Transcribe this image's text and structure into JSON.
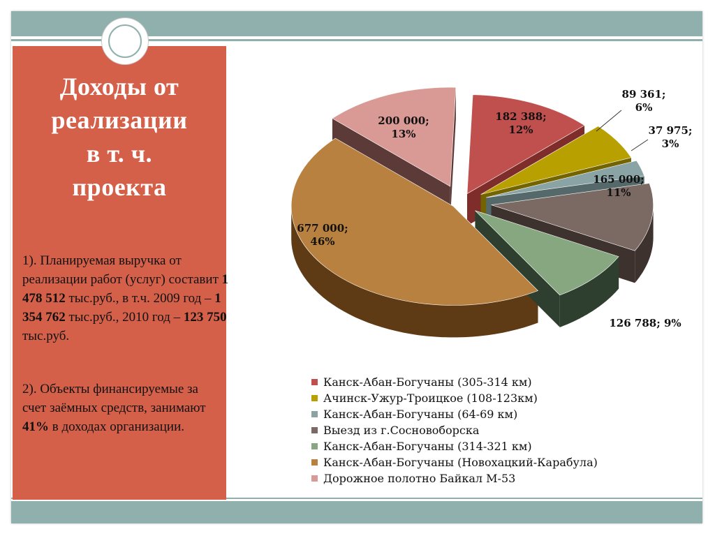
{
  "title_lines": [
    "Доходы от",
    "реализации",
    "в т. ч.",
    "проекта"
  ],
  "para1": {
    "a": "1). Планируемая выручка от реализации работ (услуг) составит ",
    "b": "1 478 512",
    "c": " тыс.руб., в т.ч. 2009 год – ",
    "d": "1 354 762",
    "e": " тыс.руб., 2010 год – ",
    "f": "123 750",
    "g": " тыс.руб."
  },
  "para2": {
    "a": "2). Объекты финансируемые за счет заёмных средств, занимают ",
    "b": "41%",
    "c": " в доходах организации."
  },
  "chart_data": {
    "type": "pie",
    "slices": [
      {
        "name": "Канск-Абан-Богучаны (305-314 км)",
        "value": 182388,
        "pct": "12%",
        "label": [
          "182 388;",
          "12%"
        ],
        "color": "#c0504d",
        "dark": "#7e2d2a"
      },
      {
        "name": "Ачинск-Ужур-Троицкое (108-123км)",
        "value": 89361,
        "pct": "6%",
        "label": [
          "89 361;",
          "6%"
        ],
        "color": "#b7a000",
        "dark": "#736400"
      },
      {
        "name": "Канск-Абан-Богучаны (64-69 км)",
        "value": 37975,
        "pct": "3%",
        "label": [
          "37 975;",
          "3%"
        ],
        "color": "#8aa3a4",
        "dark": "#55696a"
      },
      {
        "name": "Выезд из г.Сосновоборска",
        "value": 165000,
        "pct": "11%",
        "label": [
          "165 000;",
          "11%"
        ],
        "color": "#7b6a64",
        "dark": "#3e322e"
      },
      {
        "name": "Канск-Абан-Богучаны (314-321 км)",
        "value": 126788,
        "pct": "9%",
        "label": [
          "126 788; 9%"
        ],
        "color": "#86a780",
        "dark": "#2f3f2f"
      },
      {
        "name": "Канск-Абан-Богучаны (Новохацкий-Карабула)",
        "value": 677000,
        "pct": "46%",
        "label": [
          "677 000;",
          "46%"
        ],
        "color": "#b9813f",
        "dark": "#5e3b14"
      },
      {
        "name": "Дорожное полотно Байкал М-53",
        "value": 200000,
        "pct": "13%",
        "label": [
          "200 000;",
          "13%"
        ],
        "color": "#d99994",
        "dark": "#5c3a38"
      }
    ],
    "legend_position": "bottom"
  }
}
